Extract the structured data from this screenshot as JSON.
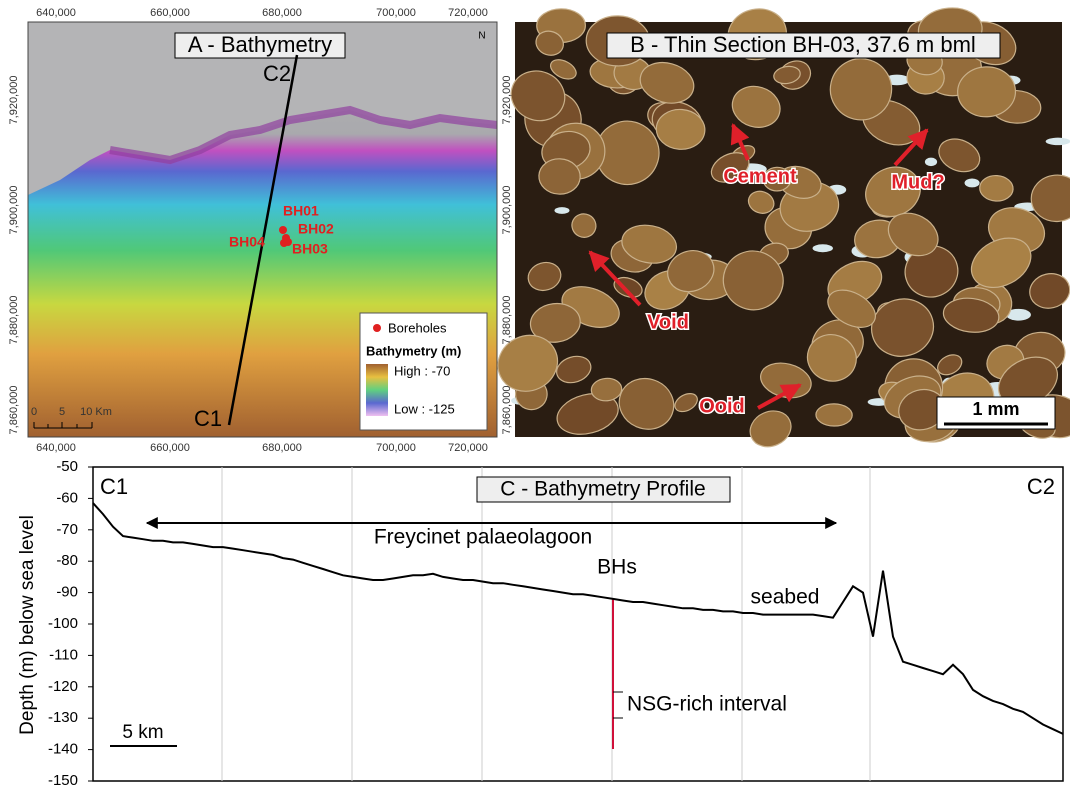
{
  "panel_a": {
    "title": "A - Bathymetry",
    "x_tick_labels": [
      "640,000",
      "660,000",
      "680,000",
      "700,000",
      "720,000"
    ],
    "y_tick_labels": [
      "7,920,000",
      "7,900,000",
      "7,880,000",
      "7,860,000"
    ],
    "north": "N",
    "profile_ends": [
      "C1",
      "C2"
    ],
    "boreholes": [
      "BH01",
      "BH02",
      "BH03",
      "BH04"
    ],
    "legend": {
      "boreholes": "Boreholes",
      "title": "Bathymetry (m)",
      "high": "High : -70",
      "low": "Low : -125"
    },
    "scale": [
      "0",
      "5",
      "10 Km"
    ]
  },
  "panel_b": {
    "title": "B - Thin Section BH-03, 37.6 m bml",
    "labels": [
      "Cement",
      "Mud?",
      "Void",
      "Ooid"
    ],
    "scale": "1 mm"
  },
  "chart_data": {
    "type": "line",
    "title": "C - Bathymetry Profile",
    "y_label": "Depth (m) below sea level",
    "color": "#000000",
    "categories": [
      null,
      null,
      null,
      null,
      null,
      null,
      null,
      null,
      null,
      null,
      null,
      null,
      null,
      null,
      null,
      null,
      null,
      null,
      null,
      null,
      null,
      null,
      null,
      null,
      null,
      null,
      null,
      null,
      null,
      null,
      null,
      null,
      null,
      null,
      null,
      null,
      null,
      null,
      null,
      null,
      null,
      null,
      null,
      null,
      null,
      null,
      null,
      null,
      null,
      null,
      null,
      null,
      null,
      null,
      null,
      null,
      null,
      null,
      null,
      null,
      null,
      null,
      null,
      null,
      null,
      null,
      null,
      null,
      null,
      null,
      null,
      null,
      null,
      null,
      null,
      null,
      null,
      null,
      null,
      null,
      null,
      null,
      null,
      null,
      null,
      null,
      null,
      null,
      null,
      null,
      null,
      null,
      null,
      null,
      null,
      null,
      null,
      null
    ],
    "values": [
      -61.5,
      -65,
      -69,
      -72,
      -72.5,
      -73,
      -73.5,
      -73.5,
      -74,
      -74,
      -74.5,
      -75,
      -75.5,
      -75.5,
      -76,
      -76.5,
      -77,
      -77.5,
      -78,
      -79,
      -79.5,
      -80.5,
      -81.5,
      -82.5,
      -83.5,
      -84.5,
      -85,
      -85.5,
      -86,
      -86,
      -85.5,
      -85,
      -84.5,
      -84.5,
      -84,
      -85,
      -85.5,
      -86,
      -86,
      -86.5,
      -87,
      -87,
      -87.5,
      -88,
      -88.5,
      -89,
      -89.5,
      -90,
      -90.5,
      -90.5,
      -91,
      -91.5,
      -92,
      -92.5,
      -93,
      -93,
      -93.5,
      -94,
      -94.5,
      -95,
      -95,
      -95.5,
      -95.5,
      -96,
      -96,
      -96.5,
      -96.5,
      -97,
      -97,
      -97,
      -97,
      -97,
      -97,
      -97.5,
      -98,
      -93,
      -88,
      -90,
      -104,
      -83,
      -104,
      -112,
      -113,
      -114,
      -115,
      -116,
      -113,
      -116,
      -121,
      -123,
      -124.5,
      -125.5,
      -127,
      -128,
      -130,
      -132,
      -133.5,
      -135
    ],
    "ylim": [
      -150,
      -50
    ],
    "yticks": [
      -50,
      -60,
      -70,
      -80,
      -90,
      -100,
      -110,
      -120,
      -130,
      -140,
      -150
    ],
    "annotations": {
      "start": "C1",
      "end": "C2",
      "lagoon": "Freycinet palaeolagoon",
      "boreholes": "BHs",
      "seabed": "seabed",
      "interval": "NSG-rich interval",
      "scale": "5 km"
    }
  }
}
